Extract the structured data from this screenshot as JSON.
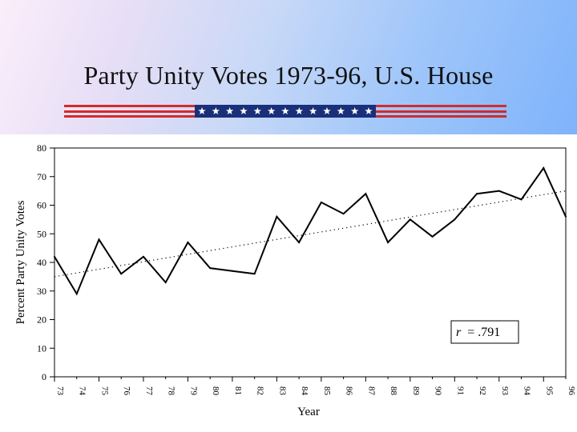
{
  "slide": {
    "title": "Party Unity Votes 1973-96, U.S. House"
  },
  "banner": {
    "stars": 13,
    "colors": {
      "red": "#d42a2a",
      "blue": "#1a2f7a",
      "star": "#ffffff"
    }
  },
  "chart_data": {
    "type": "line",
    "title": "",
    "xlabel": "Year",
    "ylabel": "Percent Party Unity Votes",
    "ylim": [
      0,
      80
    ],
    "yticks": [
      0,
      10,
      20,
      30,
      40,
      50,
      60,
      70,
      80
    ],
    "categories": [
      "73",
      "74",
      "75",
      "76",
      "77",
      "78",
      "79",
      "80",
      "81",
      "82",
      "83",
      "84",
      "85",
      "86",
      "87",
      "88",
      "89",
      "90",
      "91",
      "92",
      "93",
      "94",
      "95",
      "96"
    ],
    "series": [
      {
        "values": [
          42,
          29,
          48,
          36,
          42,
          33,
          47,
          38,
          37,
          36,
          56,
          47,
          61,
          57,
          64,
          47,
          55,
          49,
          55,
          64,
          65,
          62,
          73,
          56
        ]
      }
    ],
    "trendline": {
      "style": "dotted",
      "start": 35,
      "end": 65
    },
    "annotation": {
      "r_symbol": "r",
      "r_value": "= .791"
    },
    "grid": false
  }
}
